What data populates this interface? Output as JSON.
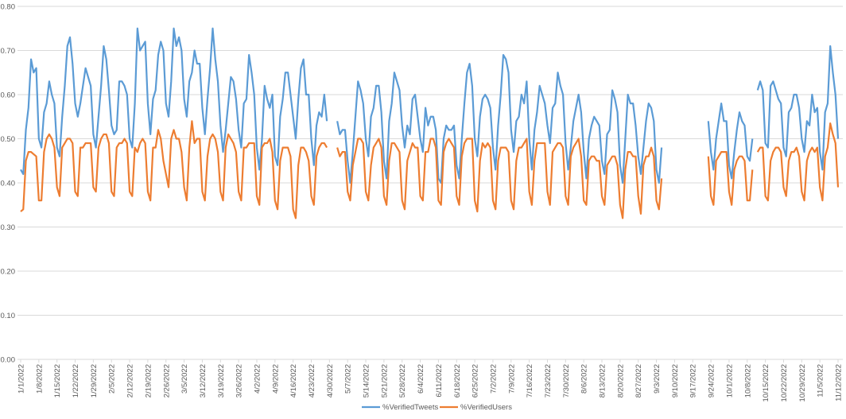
{
  "chart_data": {
    "type": "line",
    "title": "",
    "xlabel": "",
    "ylabel": "",
    "ylim": [
      0,
      0.8
    ],
    "y_ticks": [
      "0.00",
      "0.10",
      "0.20",
      "0.30",
      "0.40",
      "0.50",
      "0.60",
      "0.70",
      "0.80"
    ],
    "x_interval": "daily",
    "x_ticks": [
      "1/1/2022",
      "1/8/2022",
      "1/15/2022",
      "1/22/2022",
      "1/29/2022",
      "2/5/2022",
      "2/12/2022",
      "2/19/2022",
      "2/26/2022",
      "3/5/2022",
      "3/12/2022",
      "3/19/2022",
      "3/26/2022",
      "4/2/2022",
      "4/9/2022",
      "4/16/2022",
      "4/23/2022",
      "4/30/2022",
      "5/7/2022",
      "5/14/2022",
      "5/21/2022",
      "5/28/2022",
      "6/4/2022",
      "6/11/2022",
      "6/18/2022",
      "6/25/2022",
      "7/2/2022",
      "7/9/2022",
      "7/16/2022",
      "7/23/2022",
      "7/30/2022",
      "8/6/2022",
      "8/13/2022",
      "8/20/2022",
      "8/27/2022",
      "9/3/2022",
      "9/10/2022",
      "9/17/2022",
      "9/24/2022",
      "10/1/2022",
      "10/8/2022",
      "10/15/2022",
      "10/22/2022",
      "10/29/2022",
      "11/5/2022",
      "11/12/2022"
    ],
    "grid": true,
    "legend": "bottom",
    "series": [
      {
        "name": "%VerifiedTweets",
        "color": "#5b9bd5",
        "values": [
          0.43,
          0.42,
          0.52,
          0.57,
          0.68,
          0.65,
          0.66,
          0.5,
          0.48,
          0.56,
          0.58,
          0.63,
          0.6,
          0.58,
          0.48,
          0.46,
          0.55,
          0.62,
          0.71,
          0.73,
          0.67,
          0.58,
          0.55,
          0.58,
          0.62,
          0.66,
          0.64,
          0.62,
          0.51,
          0.48,
          0.55,
          0.62,
          0.71,
          0.68,
          0.61,
          0.53,
          0.51,
          0.52,
          0.63,
          0.63,
          0.62,
          0.6,
          0.5,
          0.48,
          0.58,
          0.75,
          0.7,
          0.71,
          0.72,
          0.58,
          0.51,
          0.59,
          0.61,
          0.69,
          0.72,
          0.7,
          0.58,
          0.55,
          0.63,
          0.75,
          0.71,
          0.73,
          0.7,
          0.59,
          0.55,
          0.63,
          0.65,
          0.7,
          0.67,
          0.67,
          0.57,
          0.51,
          0.59,
          0.66,
          0.75,
          0.68,
          0.63,
          0.53,
          0.47,
          0.52,
          0.58,
          0.64,
          0.63,
          0.59,
          0.52,
          0.48,
          0.58,
          0.59,
          0.69,
          0.65,
          0.6,
          0.48,
          0.43,
          0.5,
          0.62,
          0.59,
          0.57,
          0.6,
          0.46,
          0.44,
          0.55,
          0.59,
          0.65,
          0.65,
          0.6,
          0.55,
          0.5,
          0.59,
          0.66,
          0.68,
          0.6,
          0.6,
          0.5,
          0.44,
          0.53,
          0.56,
          0.55,
          0.6,
          0.54,
          null,
          null,
          null,
          0.54,
          0.51,
          0.52,
          0.52,
          0.45,
          0.4,
          0.47,
          0.55,
          0.63,
          0.61,
          0.58,
          0.5,
          0.46,
          0.55,
          0.57,
          0.62,
          0.62,
          0.56,
          0.45,
          0.41,
          0.54,
          0.58,
          0.65,
          0.63,
          0.61,
          0.53,
          0.48,
          0.53,
          0.51,
          0.59,
          0.6,
          0.55,
          0.5,
          0.47,
          0.57,
          0.53,
          0.55,
          0.55,
          0.52,
          0.41,
          0.4,
          0.5,
          0.53,
          0.52,
          0.52,
          0.53,
          0.44,
          0.41,
          0.5,
          0.58,
          0.65,
          0.67,
          0.62,
          0.5,
          0.46,
          0.55,
          0.59,
          0.6,
          0.59,
          0.57,
          0.48,
          0.43,
          0.53,
          0.6,
          0.69,
          0.68,
          0.65,
          0.52,
          0.47,
          0.54,
          0.55,
          0.6,
          0.58,
          0.63,
          0.5,
          0.43,
          0.52,
          0.56,
          0.62,
          0.6,
          0.58,
          0.53,
          0.49,
          0.57,
          0.58,
          0.65,
          0.62,
          0.6,
          0.49,
          0.43,
          0.48,
          0.54,
          0.57,
          0.6,
          0.56,
          0.47,
          0.41,
          0.5,
          0.53,
          0.55,
          0.54,
          0.53,
          0.45,
          0.42,
          0.51,
          0.52,
          0.61,
          0.59,
          0.56,
          0.44,
          0.4,
          0.5,
          0.6,
          0.58,
          0.58,
          0.53,
          0.46,
          0.42,
          0.48,
          0.54,
          0.58,
          0.57,
          0.54,
          0.43,
          0.4,
          0.48,
          null,
          null,
          null,
          null,
          null,
          null,
          null,
          null,
          null,
          null,
          null,
          null,
          null,
          null,
          null,
          null,
          null,
          0.54,
          0.47,
          0.43,
          0.5,
          0.54,
          0.58,
          0.54,
          0.54,
          0.44,
          0.41,
          0.47,
          0.52,
          0.56,
          0.54,
          0.53,
          0.46,
          0.45,
          0.5,
          null,
          0.61,
          0.63,
          0.61,
          0.49,
          0.48,
          0.62,
          0.63,
          0.61,
          0.59,
          0.58,
          0.48,
          0.46,
          0.56,
          0.57,
          0.6,
          0.6,
          0.57,
          0.5,
          0.47,
          0.54,
          0.53,
          0.6,
          0.56,
          0.57,
          0.47,
          0.43,
          0.56,
          0.58,
          0.71,
          0.65,
          0.6,
          0.5
        ]
      },
      {
        "name": "%VerifiedUsers",
        "color": "#ed7d31",
        "values": [
          0.335,
          0.34,
          0.45,
          0.47,
          0.47,
          0.465,
          0.46,
          0.36,
          0.36,
          0.47,
          0.5,
          0.51,
          0.5,
          0.48,
          0.39,
          0.37,
          0.48,
          0.49,
          0.5,
          0.5,
          0.49,
          0.38,
          0.37,
          0.48,
          0.48,
          0.49,
          0.49,
          0.49,
          0.39,
          0.38,
          0.48,
          0.5,
          0.51,
          0.51,
          0.49,
          0.38,
          0.37,
          0.48,
          0.49,
          0.49,
          0.5,
          0.49,
          0.38,
          0.37,
          0.48,
          0.47,
          0.49,
          0.5,
          0.49,
          0.38,
          0.36,
          0.48,
          0.48,
          0.52,
          0.5,
          0.45,
          0.42,
          0.39,
          0.5,
          0.52,
          0.5,
          0.5,
          0.47,
          0.39,
          0.36,
          0.48,
          0.54,
          0.49,
          0.5,
          0.5,
          0.38,
          0.36,
          0.46,
          0.5,
          0.51,
          0.5,
          0.47,
          0.38,
          0.36,
          0.48,
          0.51,
          0.5,
          0.49,
          0.47,
          0.38,
          0.36,
          0.48,
          0.48,
          0.49,
          0.49,
          0.49,
          0.37,
          0.35,
          0.48,
          0.49,
          0.49,
          0.5,
          0.47,
          0.36,
          0.34,
          0.45,
          0.48,
          0.48,
          0.48,
          0.46,
          0.34,
          0.32,
          0.44,
          0.48,
          0.48,
          0.47,
          0.45,
          0.37,
          0.35,
          0.46,
          0.48,
          0.49,
          0.49,
          0.48,
          null,
          null,
          null,
          0.48,
          0.46,
          0.47,
          0.47,
          0.38,
          0.36,
          0.44,
          0.47,
          0.5,
          0.5,
          0.49,
          0.38,
          0.36,
          0.44,
          0.48,
          0.49,
          0.5,
          0.48,
          0.37,
          0.35,
          0.45,
          0.49,
          0.49,
          0.48,
          0.47,
          0.36,
          0.34,
          0.45,
          0.47,
          0.49,
          0.48,
          0.48,
          0.37,
          0.36,
          0.47,
          0.47,
          0.5,
          0.5,
          0.48,
          0.36,
          0.35,
          0.47,
          0.49,
          0.5,
          0.49,
          0.48,
          0.37,
          0.35,
          0.46,
          0.49,
          0.5,
          0.5,
          0.5,
          0.36,
          0.335,
          0.45,
          0.49,
          0.48,
          0.49,
          0.48,
          0.36,
          0.34,
          0.45,
          0.48,
          0.48,
          0.48,
          0.47,
          0.36,
          0.34,
          0.45,
          0.48,
          0.48,
          0.49,
          0.5,
          0.38,
          0.35,
          0.45,
          0.49,
          0.49,
          0.49,
          0.49,
          0.38,
          0.35,
          0.47,
          0.48,
          0.49,
          0.49,
          0.48,
          0.37,
          0.35,
          0.46,
          0.48,
          0.49,
          0.5,
          0.46,
          0.36,
          0.35,
          0.45,
          0.46,
          0.46,
          0.45,
          0.45,
          0.37,
          0.35,
          0.44,
          0.45,
          0.46,
          0.46,
          0.44,
          0.35,
          0.32,
          0.43,
          0.47,
          0.47,
          0.46,
          0.46,
          0.37,
          0.33,
          0.44,
          0.46,
          0.46,
          0.48,
          0.46,
          0.36,
          0.34,
          0.41,
          null,
          null,
          null,
          null,
          null,
          null,
          null,
          null,
          null,
          null,
          null,
          null,
          null,
          null,
          null,
          null,
          null,
          0.46,
          0.37,
          0.35,
          0.45,
          0.46,
          0.47,
          0.47,
          0.47,
          0.38,
          0.35,
          0.43,
          0.45,
          0.46,
          0.46,
          0.45,
          0.36,
          0.36,
          0.43,
          null,
          0.47,
          0.48,
          0.48,
          0.37,
          0.36,
          0.45,
          0.47,
          0.48,
          0.48,
          0.47,
          0.39,
          0.37,
          0.45,
          0.47,
          0.47,
          0.48,
          0.46,
          0.38,
          0.36,
          0.45,
          0.47,
          0.48,
          0.47,
          0.48,
          0.39,
          0.36,
          0.46,
          0.48,
          0.535,
          0.51,
          0.49,
          0.39
        ]
      }
    ]
  }
}
